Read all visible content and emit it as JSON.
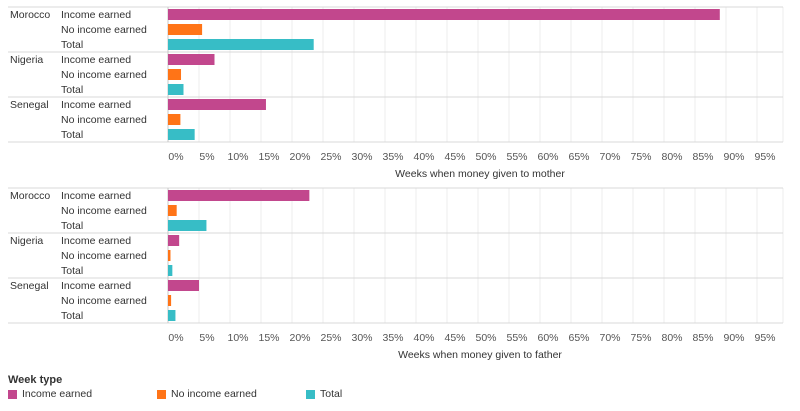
{
  "chart_data": [
    {
      "type": "bar",
      "orientation": "horizontal",
      "xlabel": "Weeks when money given to mother",
      "categories": [
        "Morocco",
        "Nigeria",
        "Senegal"
      ],
      "subcategories": [
        "Income earned",
        "No income earned",
        "Total"
      ],
      "series": [
        {
          "name": "Income earned",
          "values": [
            89.0,
            7.5,
            15.8
          ]
        },
        {
          "name": "No income earned",
          "values": [
            5.5,
            2.1,
            2.0
          ]
        },
        {
          "name": "Total",
          "values": [
            23.5,
            2.5,
            4.3
          ]
        }
      ],
      "xlim": [
        0,
        100
      ],
      "ticks": [
        0,
        5,
        10,
        15,
        20,
        25,
        30,
        35,
        40,
        45,
        50,
        55,
        60,
        65,
        70,
        75,
        80,
        85,
        90,
        95
      ],
      "grid": true
    },
    {
      "type": "bar",
      "orientation": "horizontal",
      "xlabel": "Weeks when money given to father",
      "categories": [
        "Morocco",
        "Nigeria",
        "Senegal"
      ],
      "subcategories": [
        "Income earned",
        "No income earned",
        "Total"
      ],
      "series": [
        {
          "name": "Income earned",
          "values": [
            22.8,
            1.8,
            5.0
          ]
        },
        {
          "name": "No income earned",
          "values": [
            1.4,
            0.4,
            0.5
          ]
        },
        {
          "name": "Total",
          "values": [
            6.2,
            0.7,
            1.2
          ]
        }
      ],
      "xlim": [
        0,
        100
      ],
      "ticks": [
        0,
        5,
        10,
        15,
        20,
        25,
        30,
        35,
        40,
        45,
        50,
        55,
        60,
        65,
        70,
        75,
        80,
        85,
        90,
        95
      ],
      "grid": true
    }
  ],
  "legend": {
    "title": "Week type",
    "placement": "bottom-left",
    "items": [
      {
        "label": "Income earned",
        "color": "#c2478d"
      },
      {
        "label": "No income earned",
        "color": "#ff7417"
      },
      {
        "label": "Total",
        "color": "#37bdc6"
      }
    ]
  },
  "colors": {
    "Income earned": "#c2478d",
    "No income earned": "#ff7417",
    "Total": "#37bdc6"
  }
}
